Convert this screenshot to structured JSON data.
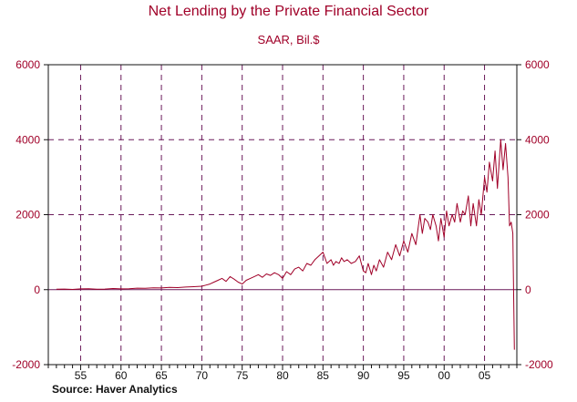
{
  "colors": {
    "title": "#a00028",
    "line": "#a00028",
    "grid": "#6a1a5a",
    "axis": "#111111",
    "ytick": "#a00028",
    "xtick": "#111111"
  },
  "source": "Source: Haver Analytics",
  "chart_data": {
    "type": "line",
    "title": "Net Lending by the Private Financial Sector",
    "subtitle": "SAAR, Bil.$",
    "xlabel": "",
    "ylabel": "",
    "xlim": [
      1951,
      2009
    ],
    "ylim": [
      -2000,
      6000
    ],
    "y_ticks": [
      -2000,
      0,
      2000,
      4000,
      6000
    ],
    "y_tick_labels": [
      "-2000",
      "0",
      "2000",
      "4000",
      "6000"
    ],
    "x_ticks": [
      1955,
      1960,
      1965,
      1970,
      1975,
      1980,
      1985,
      1990,
      1995,
      2000,
      2005
    ],
    "x_tick_labels": [
      "55",
      "60",
      "65",
      "70",
      "75",
      "80",
      "85",
      "90",
      "95",
      "00",
      "05"
    ],
    "gridlines": "dashed at labeled ticks (vertical at x ticks, horizontal at 2000 and 4000)",
    "secondary_y_axis": "right, same scale",
    "series": [
      {
        "x": [
          1952.0,
          1953.0,
          1954.0,
          1955.0,
          1956.0,
          1957.0,
          1958.0,
          1959.0,
          1960.0,
          1961.0,
          1962.0,
          1963.0,
          1964.0,
          1965.0,
          1966.0,
          1967.0,
          1968.0,
          1969.0,
          1970.0,
          1970.5,
          1971.0,
          1971.5,
          1972.0,
          1972.5,
          1973.0,
          1973.5,
          1974.0,
          1974.5,
          1975.0,
          1975.5,
          1976.0,
          1976.5,
          1977.0,
          1977.5,
          1978.0,
          1978.5,
          1979.0,
          1979.5,
          1980.0,
          1980.5,
          1981.0,
          1981.5,
          1982.0,
          1982.5,
          1983.0,
          1983.5,
          1984.0,
          1984.5,
          1985.0,
          1985.5,
          1986.0,
          1986.3,
          1986.6,
          1987.0,
          1987.3,
          1987.6,
          1988.0,
          1988.5,
          1989.0,
          1989.5,
          1990.0,
          1990.3,
          1990.6,
          1991.0,
          1991.3,
          1991.6,
          1992.0,
          1992.5,
          1993.0,
          1993.5,
          1994.0,
          1994.5,
          1995.0,
          1995.5,
          1996.0,
          1996.5,
          1997.0,
          1997.3,
          1997.6,
          1998.0,
          1998.3,
          1998.6,
          1999.0,
          1999.3,
          1999.6,
          2000.0,
          2000.3,
          2000.6,
          2001.0,
          2001.3,
          2001.6,
          2002.0,
          2002.3,
          2002.6,
          2003.0,
          2003.3,
          2003.6,
          2004.0,
          2004.3,
          2004.6,
          2005.0,
          2005.3,
          2005.6,
          2006.0,
          2006.3,
          2006.6,
          2007.0,
          2007.3,
          2007.6,
          2007.9,
          2008.1,
          2008.3,
          2008.5,
          2008.7
        ],
        "y": [
          10,
          15,
          5,
          20,
          25,
          10,
          15,
          30,
          20,
          25,
          40,
          35,
          50,
          45,
          60,
          55,
          70,
          80,
          90,
          120,
          150,
          200,
          250,
          300,
          220,
          350,
          280,
          200,
          150,
          250,
          300,
          350,
          400,
          330,
          420,
          380,
          450,
          400,
          300,
          480,
          400,
          550,
          600,
          500,
          700,
          650,
          800,
          900,
          1000,
          700,
          800,
          650,
          750,
          700,
          850,
          750,
          800,
          700,
          750,
          900,
          500,
          450,
          700,
          400,
          650,
          500,
          800,
          600,
          1000,
          800,
          1200,
          900,
          1300,
          1000,
          1500,
          1200,
          2000,
          1500,
          1900,
          1800,
          1600,
          2000,
          1700,
          1300,
          1900,
          1400,
          2100,
          1700,
          2000,
          1800,
          2300,
          1800,
          2100,
          2000,
          2500,
          1700,
          2300,
          1700,
          2400,
          2000,
          3000,
          2600,
          3400,
          2900,
          3700,
          2700,
          4000,
          3200,
          3900,
          3000,
          1700,
          1800,
          1500,
          -1600
        ]
      }
    ]
  }
}
